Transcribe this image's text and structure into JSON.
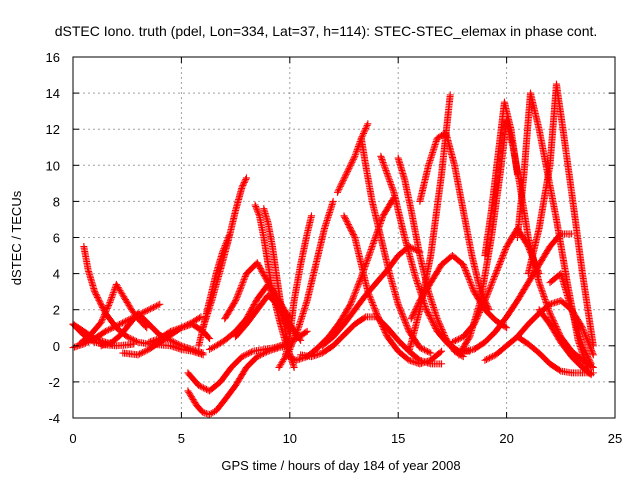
{
  "chart_data": {
    "type": "scatter",
    "title": "dSTEC Iono. truth (pdel, Lon=334, Lat=37, h=114): STEC-STEC_elemax in phase cont.",
    "xlabel": "GPS time / hours of day 184 of year 2008",
    "ylabel": "dSTEC  / TECUs",
    "xlim": [
      0,
      25
    ],
    "ylim": [
      -4,
      16
    ],
    "xticks": [
      "0",
      "5",
      "10",
      "15",
      "20",
      "25"
    ],
    "yticks": [
      "-4",
      "-2",
      "0",
      "2",
      "4",
      "6",
      "8",
      "10",
      "12",
      "14",
      "16"
    ],
    "grid": true,
    "marker": "+",
    "color": "#ff0000",
    "series": [
      {
        "x": [
          0.0,
          0.5,
          1.0,
          1.5,
          2.0,
          2.5,
          2.8
        ],
        "y": [
          1.2,
          0.6,
          0.2,
          0.05,
          0.0,
          0.05,
          0.1
        ]
      },
      {
        "x": [
          0.5,
          0.7,
          1.0,
          1.5,
          2.0,
          2.5,
          3.0,
          3.5,
          4.0,
          4.5,
          5.0,
          5.5,
          6.0
        ],
        "y": [
          5.5,
          4.2,
          3.0,
          1.8,
          1.0,
          0.5,
          0.2,
          0.1,
          0.05,
          0.0,
          -0.2,
          -0.3,
          -0.5
        ]
      },
      {
        "x": [
          0.0,
          0.5,
          1.0,
          1.5,
          2.0,
          2.5,
          3.0,
          3.5,
          4.0
        ],
        "y": [
          -0.1,
          0.1,
          0.4,
          0.8,
          1.1,
          1.4,
          1.7,
          2.0,
          2.3
        ]
      },
      {
        "x": [
          0.3,
          0.8,
          1.3,
          1.7,
          2.0,
          2.3,
          2.7,
          3.0,
          3.4
        ],
        "y": [
          0.1,
          0.6,
          1.3,
          2.4,
          3.4,
          2.8,
          2.0,
          1.5,
          1.0
        ]
      },
      {
        "x": [
          0.0,
          0.5,
          1.0,
          1.5,
          1.8
        ],
        "y": [
          1.2,
          0.8,
          0.4,
          0.2,
          0.1
        ]
      },
      {
        "x": [
          1.3,
          1.8,
          2.2,
          2.6,
          3.0,
          3.5,
          4.0,
          4.5,
          5.0,
          5.5,
          6.0
        ],
        "y": [
          0.0,
          0.2,
          0.6,
          1.2,
          1.8,
          1.2,
          0.6,
          0.3,
          0.0,
          -0.2,
          -0.4
        ]
      },
      {
        "x": [
          2.3,
          3.0,
          3.5,
          4.0,
          4.5,
          5.0,
          5.5,
          6.0,
          6.3
        ],
        "y": [
          -0.4,
          -0.5,
          -0.2,
          0.2,
          0.6,
          1.0,
          1.2,
          0.8,
          0.4
        ]
      },
      {
        "x": [
          3.5,
          4.0,
          4.5,
          5.0,
          5.5,
          5.9
        ],
        "y": [
          0.2,
          0.4,
          0.8,
          1.0,
          1.3,
          1.6
        ]
      },
      {
        "x": [
          5.3,
          5.8,
          6.3,
          6.8,
          7.3,
          7.8,
          8.3,
          8.8,
          9.3,
          9.8,
          10.3,
          10.8
        ],
        "y": [
          -1.5,
          -2.2,
          -2.5,
          -2.0,
          -1.2,
          -0.6,
          -0.3,
          -0.2,
          -0.1,
          0.1,
          0.4,
          0.8
        ]
      },
      {
        "x": [
          5.3,
          5.7,
          6.0,
          6.3,
          6.6,
          7.0,
          7.5,
          8.0,
          8.5,
          9.0,
          9.5,
          10.0
        ],
        "y": [
          -2.5,
          -3.3,
          -3.7,
          -3.8,
          -3.6,
          -3.0,
          -2.2,
          -1.2,
          -0.6,
          -0.3,
          -0.1,
          0.0
        ]
      },
      {
        "x": [
          5.8,
          6.0,
          6.3,
          6.6,
          6.9,
          7.2
        ],
        "y": [
          0.0,
          1.0,
          2.5,
          4.0,
          5.2,
          6.1
        ]
      },
      {
        "x": [
          6.0,
          6.4,
          6.8,
          7.2,
          7.5,
          7.8,
          8.0
        ],
        "y": [
          1.0,
          2.5,
          4.2,
          6.0,
          7.5,
          8.8,
          9.3
        ]
      },
      {
        "x": [
          6.3,
          6.6,
          7.0,
          7.5,
          8.0,
          8.5,
          9.0,
          9.5,
          10.0
        ],
        "y": [
          -0.2,
          0.0,
          0.3,
          0.8,
          1.5,
          2.6,
          3.4,
          2.0,
          0.8
        ]
      },
      {
        "x": [
          7.0,
          7.5,
          8.0,
          8.5,
          9.0,
          9.5,
          10.0
        ],
        "y": [
          1.5,
          2.5,
          4.0,
          4.6,
          3.5,
          2.5,
          1.5
        ]
      },
      {
        "x": [
          7.5,
          8.0,
          8.5,
          9.0,
          9.5,
          10.0,
          10.5
        ],
        "y": [
          0.5,
          1.2,
          2.0,
          2.8,
          2.2,
          1.2,
          0.3
        ]
      },
      {
        "x": [
          8.4,
          8.6,
          8.8,
          9.0,
          9.2,
          9.5,
          9.8,
          10.0
        ],
        "y": [
          7.8,
          7.2,
          6.0,
          4.5,
          3.0,
          1.5,
          0.2,
          -0.5
        ]
      },
      {
        "x": [
          8.8,
          9.0,
          9.2,
          9.4,
          9.6,
          9.8,
          10.0,
          10.2
        ],
        "y": [
          7.6,
          6.8,
          5.5,
          3.8,
          2.2,
          0.8,
          -0.5,
          -1.2
        ]
      },
      {
        "x": [
          9.5,
          9.8,
          10.0,
          10.2,
          10.5,
          10.8,
          11.0
        ],
        "y": [
          -1.2,
          -0.6,
          0.5,
          2.5,
          4.5,
          6.2,
          7.2
        ]
      },
      {
        "x": [
          10.0,
          10.4,
          10.8,
          11.2,
          11.6,
          12.0
        ],
        "y": [
          -0.2,
          1.0,
          2.5,
          4.5,
          6.5,
          8.0
        ]
      },
      {
        "x": [
          9.8,
          10.3,
          10.8,
          11.3,
          11.8,
          12.3,
          12.8,
          13.3,
          13.8,
          14.3,
          14.8
        ],
        "y": [
          -0.5,
          -0.8,
          -0.6,
          -0.1,
          0.5,
          1.3,
          2.3,
          3.8,
          5.5,
          7.2,
          8.2
        ]
      },
      {
        "x": [
          10.5,
          11.0,
          11.5,
          12.0,
          12.5,
          13.0,
          13.5,
          14.0,
          14.5,
          15.0,
          15.5,
          16.0,
          16.5,
          17.0
        ],
        "y": [
          -0.5,
          -0.6,
          -0.4,
          0.0,
          0.6,
          1.2,
          1.6,
          1.6,
          1.0,
          0.3,
          -0.3,
          -0.8,
          -1.0,
          -1.0
        ]
      },
      {
        "x": [
          11.5,
          12.0,
          12.5,
          13.0,
          13.5,
          14.0,
          14.5,
          15.0,
          15.5,
          16.0
        ],
        "y": [
          0.0,
          0.5,
          1.2,
          2.0,
          2.8,
          3.5,
          4.2,
          5.0,
          5.5,
          5.2
        ]
      },
      {
        "x": [
          12.5,
          13.0,
          13.3,
          13.6,
          14.0,
          14.5,
          15.0,
          15.5,
          16.0,
          16.5,
          17.0
        ],
        "y": [
          7.2,
          6.0,
          4.5,
          3.0,
          1.8,
          0.5,
          -0.3,
          -0.8,
          -1.0,
          -0.8,
          -0.3
        ]
      },
      {
        "x": [
          12.2,
          12.6,
          13.0,
          13.3,
          13.6
        ],
        "y": [
          8.5,
          9.5,
          10.5,
          11.5,
          12.3
        ]
      },
      {
        "x": [
          13.3,
          13.5,
          13.8,
          14.2,
          14.6,
          15.0,
          15.5,
          16.0,
          16.5
        ],
        "y": [
          11.5,
          10.0,
          8.0,
          6.0,
          4.0,
          2.3,
          0.8,
          -0.1,
          -0.4
        ]
      },
      {
        "x": [
          14.2,
          14.8,
          15.3,
          15.8,
          16.3,
          16.8,
          17.3,
          17.8,
          18.3
        ],
        "y": [
          10.5,
          8.5,
          6.0,
          3.8,
          2.0,
          0.8,
          0.1,
          -0.3,
          -0.3
        ]
      },
      {
        "x": [
          15.0,
          15.3,
          15.6,
          16.0,
          16.4,
          16.8,
          17.2,
          17.6,
          18.0
        ],
        "y": [
          10.4,
          9.2,
          7.5,
          5.0,
          3.0,
          1.5,
          0.4,
          -0.3,
          -0.6
        ]
      },
      {
        "x": [
          15.5,
          16.0,
          16.5,
          17.0,
          17.4
        ],
        "y": [
          -0.3,
          2.0,
          5.0,
          9.5,
          13.9
        ]
      },
      {
        "x": [
          16.0,
          16.4,
          16.8,
          17.2,
          17.6,
          18.0,
          18.4,
          18.8,
          19.2
        ],
        "y": [
          8.0,
          10.0,
          11.5,
          11.8,
          10.0,
          7.5,
          5.0,
          3.0,
          2.0
        ]
      },
      {
        "x": [
          15.6,
          16.0,
          16.5,
          17.0,
          17.5,
          18.0,
          18.5,
          19.0,
          19.5,
          20.0
        ],
        "y": [
          1.5,
          2.5,
          3.5,
          4.5,
          5.0,
          4.5,
          3.0,
          2.0,
          1.4,
          1.0
        ]
      },
      {
        "x": [
          17.5,
          18.0,
          18.5,
          19.0,
          19.5,
          20.0,
          20.5,
          21.0,
          21.5
        ],
        "y": [
          0.2,
          0.5,
          1.2,
          2.5,
          4.0,
          5.5,
          6.5,
          5.5,
          4.0
        ]
      },
      {
        "x": [
          18.0,
          18.5,
          19.0,
          19.5,
          20.0,
          20.5,
          21.0,
          21.5,
          22.0,
          22.5,
          23.0
        ],
        "y": [
          -0.3,
          -0.2,
          0.2,
          0.8,
          1.6,
          2.5,
          3.5,
          4.5,
          5.5,
          6.2,
          6.2
        ]
      },
      {
        "x": [
          17.8,
          18.3,
          18.8,
          19.3,
          19.7,
          20.0
        ],
        "y": [
          -0.5,
          0.5,
          2.5,
          6.0,
          9.5,
          12.5
        ]
      },
      {
        "x": [
          19.0,
          19.3,
          19.6,
          19.9,
          20.2,
          20.5
        ],
        "y": [
          5.0,
          7.5,
          10.5,
          13.5,
          12.0,
          9.5
        ]
      },
      {
        "x": [
          20.0,
          20.3,
          20.6,
          21.0,
          21.5,
          22.0,
          22.5,
          23.0,
          23.5,
          24.0
        ],
        "y": [
          12.4,
          11.0,
          9.0,
          6.0,
          3.5,
          1.8,
          0.5,
          -0.3,
          -0.8,
          -1.2
        ]
      },
      {
        "x": [
          19.0,
          19.5,
          20.0,
          20.5,
          21.0,
          21.5,
          22.0,
          22.5,
          23.0,
          23.5,
          24.0
        ],
        "y": [
          -0.8,
          -0.5,
          0.0,
          0.5,
          1.2,
          1.8,
          2.3,
          2.5,
          2.0,
          1.0,
          -0.5
        ]
      },
      {
        "x": [
          20.5,
          20.8,
          21.1,
          21.5,
          21.9,
          22.3,
          22.8,
          23.3,
          23.8
        ],
        "y": [
          6.0,
          9.5,
          14.0,
          12.0,
          9.5,
          7.0,
          3.5,
          0.3,
          -1.5
        ]
      },
      {
        "x": [
          21.0,
          21.5,
          22.0,
          22.3,
          22.6,
          23.0,
          23.5,
          24.0
        ],
        "y": [
          4.0,
          6.5,
          10.0,
          14.5,
          12.0,
          8.5,
          4.0,
          0.0
        ]
      },
      {
        "x": [
          20.5,
          21.0,
          21.5,
          22.0,
          22.5,
          23.0,
          23.5,
          24.0
        ],
        "y": [
          0.5,
          0.1,
          -0.4,
          -1.0,
          -1.4,
          -1.5,
          -1.5,
          -1.5
        ]
      },
      {
        "x": [
          21.5,
          22.0,
          22.5,
          23.0,
          23.5,
          23.9
        ],
        "y": [
          2.0,
          1.2,
          0.2,
          -0.6,
          -1.2,
          -1.6
        ]
      },
      {
        "x": [
          22.0,
          22.5,
          23.0,
          23.5,
          23.9
        ],
        "y": [
          3.5,
          4.0,
          2.0,
          0.0,
          -1.0
        ]
      }
    ]
  }
}
